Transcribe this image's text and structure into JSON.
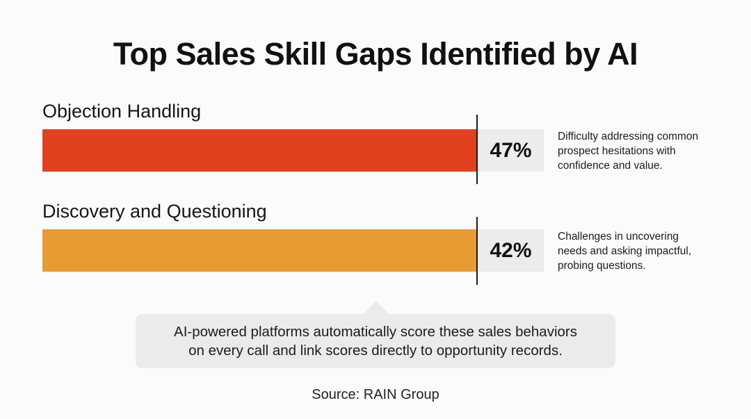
{
  "chart_data": {
    "type": "bar",
    "title": "Top Sales Skill Gaps Identified by AI",
    "categories": [
      "Objection Handling",
      "Discovery and Questioning"
    ],
    "values": [
      47,
      42
    ],
    "value_labels": [
      "47%",
      "42%"
    ],
    "descriptions": [
      [
        "Difficulty addressing common",
        "prospect hesitations with",
        "confidence and value."
      ],
      [
        "Challenges in uncovering",
        "needs and asking impactful,",
        "probing questions."
      ]
    ],
    "colors": [
      "#e2411f",
      "#e89b33"
    ],
    "xlabel": "",
    "ylabel": ""
  },
  "callout": {
    "lines": [
      "AI-powered platforms automatically score these sales behaviors",
      "on every call and link scores directly to opportunity records."
    ]
  },
  "source": "Source: RAIN Group"
}
